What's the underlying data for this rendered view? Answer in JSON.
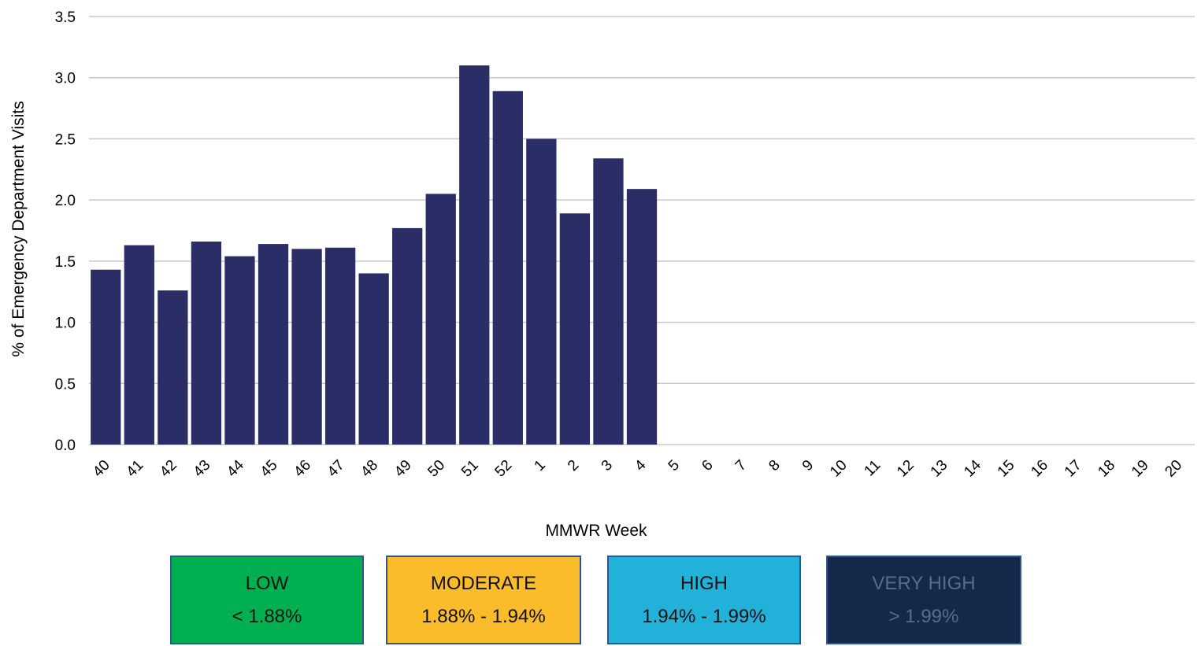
{
  "chart_data": {
    "type": "bar",
    "xlabel": "MMWR Week",
    "ylabel": "% of Emergency Department Visits",
    "ylim": [
      0,
      3.5
    ],
    "yticks": [
      "0.0",
      "0.5",
      "1.0",
      "1.5",
      "2.0",
      "2.5",
      "3.0",
      "3.5"
    ],
    "grid": true,
    "bar_color": "#2b2d66",
    "categories": [
      "40",
      "41",
      "42",
      "43",
      "44",
      "45",
      "46",
      "47",
      "48",
      "49",
      "50",
      "51",
      "52",
      "1",
      "2",
      "3",
      "4",
      "5",
      "6",
      "7",
      "8",
      "9",
      "10",
      "11",
      "12",
      "13",
      "14",
      "15",
      "16",
      "17",
      "18",
      "19",
      "20"
    ],
    "values": [
      1.43,
      1.63,
      1.26,
      1.66,
      1.54,
      1.64,
      1.6,
      1.61,
      1.4,
      1.77,
      2.05,
      3.1,
      2.89,
      2.5,
      1.89,
      2.34,
      2.09,
      null,
      null,
      null,
      null,
      null,
      null,
      null,
      null,
      null,
      null,
      null,
      null,
      null,
      null,
      null,
      null
    ]
  },
  "legend": [
    {
      "name": "LOW",
      "range": "< 1.88%",
      "bg": "#00b050",
      "fg": "#111111"
    },
    {
      "name": "MODERATE",
      "range": "1.88% - 1.94%",
      "bg": "#fbbc2b",
      "fg": "#111111"
    },
    {
      "name": "HIGH",
      "range": "1.94% - 1.99%",
      "bg": "#22b1d8",
      "fg": "#111111"
    },
    {
      "name": "VERY HIGH",
      "range": "> 1.99%",
      "bg": "#14284a",
      "fg": "#5b6b86"
    }
  ]
}
